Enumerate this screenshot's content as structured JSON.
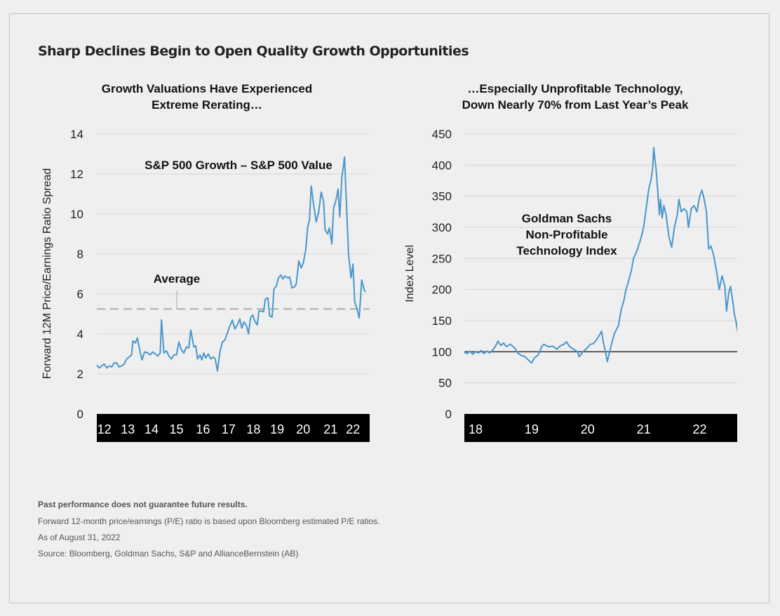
{
  "page": {
    "title": "Sharp Declines Begin to Open Quality Growth Opportunities",
    "footnotes": {
      "disclaimer": "Past performance does not guarantee future results.",
      "note": "Forward 12-month price/earnings (P/E) ratio is based upon Bloomberg estimated P/E ratios.",
      "as_of": "As of August 31, 2022",
      "source": "Source: Bloomberg, Goldman Sachs, S&P and AllianceBernstein (AB)"
    },
    "colors": {
      "line": "#4a97cc",
      "grid": "#d6d6d6",
      "average": "#999999",
      "baseline": "#333333",
      "tick_band": "#000000"
    }
  },
  "chart_data": [
    {
      "type": "line",
      "title": "Growth Valuations Have Experienced\nExtreme Rerating…",
      "xlabel": "",
      "ylabel": "Forward 12M Price/Earnings Ratio Spread",
      "ylim": [
        0,
        14
      ],
      "yticks": [
        0,
        2,
        4,
        6,
        8,
        10,
        12,
        14
      ],
      "xlim": [
        2011.7,
        2022.67
      ],
      "xticks": [
        {
          "label": "12",
          "x": 2012.0
        },
        {
          "label": "13",
          "x": 2012.95
        },
        {
          "label": "14",
          "x": 2013.9
        },
        {
          "label": "15",
          "x": 2014.9
        },
        {
          "label": "16",
          "x": 2015.97
        },
        {
          "label": "17",
          "x": 2017.0
        },
        {
          "label": "18",
          "x": 2018.0
        },
        {
          "label": "19",
          "x": 2018.95
        },
        {
          "label": "20",
          "x": 2020.0
        },
        {
          "label": "21",
          "x": 2021.1
        },
        {
          "label": "22",
          "x": 2022.0
        }
      ],
      "grid": true,
      "series_label": "S&P 500 Growth – S&P 500 Value",
      "average": {
        "label": "Average",
        "value": 5.25
      },
      "series": [
        {
          "name": "S&P 500 Growth – S&P 500 Value",
          "points": [
            [
              2011.7,
              2.45
            ],
            [
              2011.8,
              2.3
            ],
            [
              2011.9,
              2.4
            ],
            [
              2012.0,
              2.5
            ],
            [
              2012.1,
              2.3
            ],
            [
              2012.2,
              2.4
            ],
            [
              2012.3,
              2.35
            ],
            [
              2012.4,
              2.55
            ],
            [
              2012.5,
              2.55
            ],
            [
              2012.6,
              2.35
            ],
            [
              2012.7,
              2.4
            ],
            [
              2012.8,
              2.5
            ],
            [
              2012.9,
              2.75
            ],
            [
              2013.0,
              2.85
            ],
            [
              2013.1,
              2.95
            ],
            [
              2013.15,
              3.65
            ],
            [
              2013.25,
              3.55
            ],
            [
              2013.33,
              3.8
            ],
            [
              2013.45,
              3.05
            ],
            [
              2013.52,
              2.7
            ],
            [
              2013.62,
              3.1
            ],
            [
              2013.75,
              3.05
            ],
            [
              2013.85,
              2.95
            ],
            [
              2013.95,
              3.1
            ],
            [
              2014.05,
              3.0
            ],
            [
              2014.15,
              2.9
            ],
            [
              2014.25,
              3.05
            ],
            [
              2014.3,
              4.7
            ],
            [
              2014.4,
              3.05
            ],
            [
              2014.5,
              3.15
            ],
            [
              2014.6,
              2.9
            ],
            [
              2014.7,
              2.75
            ],
            [
              2014.8,
              2.95
            ],
            [
              2014.9,
              2.95
            ],
            [
              2015.0,
              3.6
            ],
            [
              2015.1,
              3.2
            ],
            [
              2015.2,
              3.05
            ],
            [
              2015.3,
              3.35
            ],
            [
              2015.4,
              3.3
            ],
            [
              2015.48,
              4.2
            ],
            [
              2015.6,
              3.35
            ],
            [
              2015.68,
              3.4
            ],
            [
              2015.75,
              2.75
            ],
            [
              2015.85,
              2.95
            ],
            [
              2015.92,
              2.7
            ],
            [
              2016.0,
              3.05
            ],
            [
              2016.08,
              2.8
            ],
            [
              2016.18,
              3.0
            ],
            [
              2016.28,
              2.75
            ],
            [
              2016.38,
              2.85
            ],
            [
              2016.46,
              2.75
            ],
            [
              2016.55,
              2.15
            ],
            [
              2016.65,
              3.1
            ],
            [
              2016.75,
              3.6
            ],
            [
              2016.85,
              3.7
            ],
            [
              2016.95,
              4.05
            ],
            [
              2017.05,
              4.4
            ],
            [
              2017.15,
              4.7
            ],
            [
              2017.25,
              4.25
            ],
            [
              2017.35,
              4.45
            ],
            [
              2017.45,
              4.75
            ],
            [
              2017.53,
              4.3
            ],
            [
              2017.62,
              4.6
            ],
            [
              2017.72,
              4.4
            ],
            [
              2017.8,
              4.0
            ],
            [
              2017.88,
              4.8
            ],
            [
              2017.97,
              4.95
            ],
            [
              2018.05,
              4.65
            ],
            [
              2018.15,
              4.45
            ],
            [
              2018.22,
              5.15
            ],
            [
              2018.32,
              5.15
            ],
            [
              2018.4,
              5.1
            ],
            [
              2018.48,
              5.75
            ],
            [
              2018.58,
              5.8
            ],
            [
              2018.65,
              4.9
            ],
            [
              2018.75,
              4.85
            ],
            [
              2018.82,
              6.25
            ],
            [
              2018.92,
              6.4
            ],
            [
              2019.0,
              6.8
            ],
            [
              2019.1,
              6.95
            ],
            [
              2019.18,
              6.75
            ],
            [
              2019.27,
              6.9
            ],
            [
              2019.37,
              6.8
            ],
            [
              2019.45,
              6.85
            ],
            [
              2019.55,
              6.3
            ],
            [
              2019.65,
              6.35
            ],
            [
              2019.72,
              6.5
            ],
            [
              2019.82,
              7.65
            ],
            [
              2019.92,
              7.3
            ],
            [
              2020.0,
              7.55
            ],
            [
              2020.1,
              8.2
            ],
            [
              2020.18,
              9.35
            ],
            [
              2020.25,
              9.7
            ],
            [
              2020.32,
              11.4
            ],
            [
              2020.43,
              10.35
            ],
            [
              2020.52,
              9.6
            ],
            [
              2020.62,
              10.1
            ],
            [
              2020.72,
              11.1
            ],
            [
              2020.82,
              10.6
            ],
            [
              2020.88,
              9.2
            ],
            [
              2020.98,
              9.0
            ],
            [
              2021.05,
              9.3
            ],
            [
              2021.15,
              8.5
            ],
            [
              2021.22,
              10.3
            ],
            [
              2021.32,
              10.7
            ],
            [
              2021.4,
              11.25
            ],
            [
              2021.47,
              9.85
            ],
            [
              2021.55,
              11.8
            ],
            [
              2021.66,
              12.85
            ],
            [
              2021.72,
              11.0
            ],
            [
              2021.82,
              8.0
            ],
            [
              2021.92,
              6.8
            ],
            [
              2022.0,
              7.5
            ],
            [
              2022.07,
              5.6
            ],
            [
              2022.15,
              5.3
            ],
            [
              2022.25,
              4.8
            ],
            [
              2022.35,
              6.7
            ],
            [
              2022.45,
              6.2
            ],
            [
              2022.5,
              6.1
            ]
          ]
        }
      ]
    },
    {
      "type": "line",
      "title": "…Especially Unprofitable Technology,\nDown Nearly 70% from Last Year’s Peak",
      "xlabel": "",
      "ylabel": "Index Level",
      "ylim": [
        0,
        450
      ],
      "yticks": [
        0,
        50,
        100,
        150,
        200,
        250,
        300,
        350,
        400,
        450
      ],
      "xlim": [
        2017.8,
        2022.67
      ],
      "xticks": [
        {
          "label": "18",
          "x": 2018.0
        },
        {
          "label": "19",
          "x": 2019.0
        },
        {
          "label": "20",
          "x": 2020.0
        },
        {
          "label": "21",
          "x": 2021.0
        },
        {
          "label": "22",
          "x": 2022.0
        }
      ],
      "grid": true,
      "baseline": 100,
      "series_label": "Goldman Sachs\nNon-Profitable\nTechnology Index",
      "series": [
        {
          "name": "Goldman Sachs Non-Profitable Technology Index",
          "points": [
            [
              2017.8,
              99
            ],
            [
              2017.85,
              97
            ],
            [
              2017.9,
              101
            ],
            [
              2017.95,
              96
            ],
            [
              2018.0,
              100
            ],
            [
              2018.05,
              98
            ],
            [
              2018.1,
              102
            ],
            [
              2018.15,
              97
            ],
            [
              2018.2,
              101
            ],
            [
              2018.25,
              98
            ],
            [
              2018.3,
              102
            ],
            [
              2018.35,
              108
            ],
            [
              2018.4,
              117
            ],
            [
              2018.45,
              110
            ],
            [
              2018.5,
              114
            ],
            [
              2018.55,
              108
            ],
            [
              2018.62,
              112
            ],
            [
              2018.7,
              106
            ],
            [
              2018.75,
              98
            ],
            [
              2018.82,
              94
            ],
            [
              2018.88,
              92
            ],
            [
              2018.95,
              86
            ],
            [
              2019.0,
              82
            ],
            [
              2019.05,
              90
            ],
            [
              2019.12,
              95
            ],
            [
              2019.18,
              108
            ],
            [
              2019.22,
              112
            ],
            [
              2019.3,
              108
            ],
            [
              2019.38,
              109
            ],
            [
              2019.45,
              104
            ],
            [
              2019.52,
              110
            ],
            [
              2019.58,
              112
            ],
            [
              2019.62,
              116
            ],
            [
              2019.68,
              108
            ],
            [
              2019.75,
              104
            ],
            [
              2019.82,
              100
            ],
            [
              2019.85,
              92
            ],
            [
              2019.92,
              100
            ],
            [
              2019.98,
              105
            ],
            [
              2020.05,
              112
            ],
            [
              2020.1,
              113
            ],
            [
              2020.15,
              118
            ],
            [
              2020.22,
              128
            ],
            [
              2020.25,
              133
            ],
            [
              2020.28,
              115
            ],
            [
              2020.32,
              100
            ],
            [
              2020.35,
              84
            ],
            [
              2020.38,
              95
            ],
            [
              2020.42,
              110
            ],
            [
              2020.48,
              130
            ],
            [
              2020.55,
              142
            ],
            [
              2020.6,
              168
            ],
            [
              2020.65,
              183
            ],
            [
              2020.68,
              198
            ],
            [
              2020.72,
              210
            ],
            [
              2020.78,
              230
            ],
            [
              2020.82,
              250
            ],
            [
              2020.88,
              262
            ],
            [
              2020.95,
              282
            ],
            [
              2021.0,
              300
            ],
            [
              2021.03,
              320
            ],
            [
              2021.06,
              340
            ],
            [
              2021.08,
              355
            ],
            [
              2021.1,
              365
            ],
            [
              2021.13,
              375
            ],
            [
              2021.16,
              395
            ],
            [
              2021.18,
              428
            ],
            [
              2021.2,
              410
            ],
            [
              2021.22,
              395
            ],
            [
              2021.25,
              360
            ],
            [
              2021.28,
              320
            ],
            [
              2021.3,
              345
            ],
            [
              2021.33,
              315
            ],
            [
              2021.36,
              335
            ],
            [
              2021.4,
              320
            ],
            [
              2021.45,
              285
            ],
            [
              2021.5,
              268
            ],
            [
              2021.55,
              300
            ],
            [
              2021.6,
              320
            ],
            [
              2021.63,
              345
            ],
            [
              2021.67,
              325
            ],
            [
              2021.72,
              330
            ],
            [
              2021.77,
              325
            ],
            [
              2021.8,
              300
            ],
            [
              2021.85,
              330
            ],
            [
              2021.9,
              335
            ],
            [
              2021.95,
              325
            ],
            [
              2022.0,
              350
            ],
            [
              2022.04,
              360
            ],
            [
              2022.08,
              345
            ],
            [
              2022.12,
              325
            ],
            [
              2022.16,
              265
            ],
            [
              2022.2,
              270
            ],
            [
              2022.25,
              255
            ],
            [
              2022.3,
              230
            ],
            [
              2022.35,
              200
            ],
            [
              2022.4,
              222
            ],
            [
              2022.45,
              205
            ],
            [
              2022.48,
              165
            ],
            [
              2022.52,
              195
            ],
            [
              2022.55,
              205
            ],
            [
              2022.6,
              175
            ],
            [
              2022.62,
              160
            ],
            [
              2022.65,
              148
            ],
            [
              2022.7,
              120
            ],
            [
              2022.75,
              140
            ],
            [
              2022.8,
              125
            ],
            [
              2022.85,
              145
            ],
            [
              2022.9,
              130
            ],
            [
              2022.95,
              148
            ],
            [
              2023.0,
              140
            ]
          ]
        }
      ]
    }
  ]
}
